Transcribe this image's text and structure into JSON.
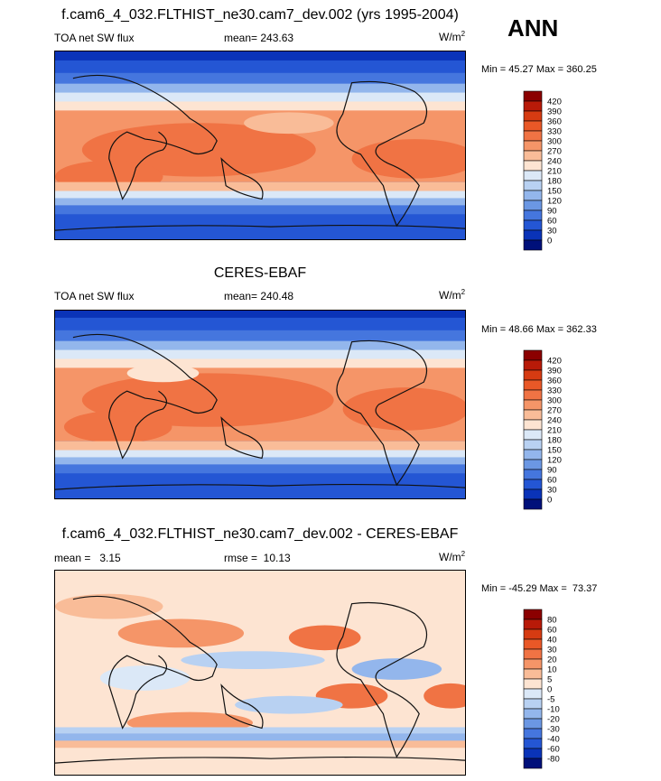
{
  "season": "ANN",
  "panels": [
    {
      "title": "f.cam6_4_032.FLTHIST_ne30.cam7_dev.002 (yrs 1995-2004)",
      "left_label": "TOA net SW flux",
      "center_label": "mean= 243.63",
      "units": "W/m",
      "units_sup": "2",
      "minmax": "Min =  45.27 Max = 360.25",
      "colorbar": {
        "labels": [
          "420",
          "390",
          "360",
          "330",
          "300",
          "270",
          "240",
          "210",
          "180",
          "150",
          "120",
          "90",
          "60",
          "30",
          "0"
        ],
        "colors": [
          "#8b0000",
          "#b81a08",
          "#d63b12",
          "#e95827",
          "#f07344",
          "#f59568",
          "#f9bc98",
          "#fde4d2",
          "#dbe8f7",
          "#b8d1f2",
          "#93b6ec",
          "#6b97e3",
          "#4576de",
          "#2456d4",
          "#0a33b8",
          "#00107a"
        ]
      }
    },
    {
      "title": "CERES-EBAF",
      "left_label": "TOA net SW flux",
      "center_label": "mean= 240.48",
      "units": "W/m",
      "units_sup": "2",
      "minmax": "Min =  48.66 Max = 362.33",
      "colorbar": {
        "labels": [
          "420",
          "390",
          "360",
          "330",
          "300",
          "270",
          "240",
          "210",
          "180",
          "150",
          "120",
          "90",
          "60",
          "30",
          "0"
        ],
        "colors": [
          "#8b0000",
          "#b81a08",
          "#d63b12",
          "#e95827",
          "#f07344",
          "#f59568",
          "#f9bc98",
          "#fde4d2",
          "#dbe8f7",
          "#b8d1f2",
          "#93b6ec",
          "#6b97e3",
          "#4576de",
          "#2456d4",
          "#0a33b8",
          "#00107a"
        ]
      }
    },
    {
      "title": "f.cam6_4_032.FLTHIST_ne30.cam7_dev.002 - CERES-EBAF",
      "left_label": "mean =   3.15",
      "center_label": "rmse =  10.13",
      "units": "W/m",
      "units_sup": "2",
      "minmax": "Min = -45.29 Max =  73.37",
      "colorbar": {
        "labels": [
          "80",
          "60",
          "40",
          "30",
          "20",
          "10",
          "5",
          "0",
          "-5",
          "-10",
          "-20",
          "-30",
          "-40",
          "-60",
          "-80"
        ],
        "colors": [
          "#8b0000",
          "#b81a08",
          "#d63b12",
          "#e95827",
          "#f07344",
          "#f59568",
          "#f9bc98",
          "#fde4d2",
          "#dbe8f7",
          "#b8d1f2",
          "#93b6ec",
          "#6b97e3",
          "#4576de",
          "#2456d4",
          "#0a33b8",
          "#00107a"
        ]
      }
    }
  ],
  "chart_data": [
    {
      "type": "heatmap",
      "title": "f.cam6_4_032.FLTHIST_ne30.cam7_dev.002 (yrs 1995-2004)",
      "variable": "TOA net SW flux",
      "units": "W/m2",
      "mean": 243.63,
      "min": 45.27,
      "max": 360.25,
      "contour_levels": [
        0,
        30,
        60,
        90,
        120,
        150,
        180,
        210,
        240,
        270,
        300,
        330,
        360,
        390,
        420
      ]
    },
    {
      "type": "heatmap",
      "title": "CERES-EBAF",
      "variable": "TOA net SW flux",
      "units": "W/m2",
      "mean": 240.48,
      "min": 48.66,
      "max": 362.33,
      "contour_levels": [
        0,
        30,
        60,
        90,
        120,
        150,
        180,
        210,
        240,
        270,
        300,
        330,
        360,
        390,
        420
      ]
    },
    {
      "type": "heatmap",
      "title": "f.cam6_4_032.FLTHIST_ne30.cam7_dev.002 - CERES-EBAF",
      "units": "W/m2",
      "mean": 3.15,
      "rmse": 10.13,
      "min": -45.29,
      "max": 73.37,
      "contour_levels": [
        -80,
        -60,
        -40,
        -30,
        -20,
        -10,
        -5,
        0,
        5,
        10,
        20,
        30,
        40,
        60,
        80
      ]
    }
  ]
}
